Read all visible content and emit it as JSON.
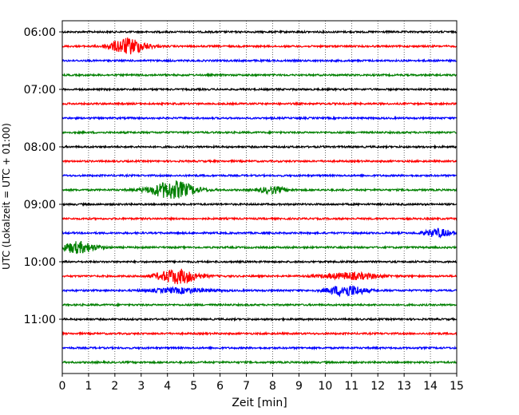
{
  "chart_data": {
    "type": "line",
    "subtype": "helicorder",
    "xlabel": "Zeit  [min]",
    "ylabel": "UTC (Lokalzeit = UTC + 01:00)",
    "xlim": [
      0,
      15
    ],
    "x_ticks": [
      "0",
      "1",
      "2",
      "3",
      "4",
      "5",
      "6",
      "7",
      "8",
      "9",
      "10",
      "11",
      "12",
      "13",
      "14",
      "15"
    ],
    "y_ticks": [
      "06:00",
      "07:00",
      "08:00",
      "09:00",
      "10:00",
      "11:00"
    ],
    "grid": "vertical dotted lines at each minute",
    "row_interval_min": 15,
    "colors": [
      "#000000",
      "#ff0000",
      "#0000ff",
      "#008000"
    ],
    "series": [
      {
        "start": "06:00",
        "color": "#000000",
        "bursts": []
      },
      {
        "start": "06:15",
        "color": "#ff0000",
        "bursts": [
          {
            "center_min": 2.5,
            "width_min": 1.6,
            "amp": 10
          }
        ]
      },
      {
        "start": "06:30",
        "color": "#0000ff",
        "bursts": []
      },
      {
        "start": "06:45",
        "color": "#008000",
        "bursts": []
      },
      {
        "start": "07:00",
        "color": "#000000",
        "bursts": []
      },
      {
        "start": "07:15",
        "color": "#ff0000",
        "bursts": []
      },
      {
        "start": "07:30",
        "color": "#0000ff",
        "bursts": []
      },
      {
        "start": "07:45",
        "color": "#008000",
        "bursts": []
      },
      {
        "start": "08:00",
        "color": "#000000",
        "bursts": []
      },
      {
        "start": "08:15",
        "color": "#ff0000",
        "bursts": []
      },
      {
        "start": "08:30",
        "color": "#0000ff",
        "bursts": []
      },
      {
        "start": "08:45",
        "color": "#008000",
        "bursts": [
          {
            "center_min": 4.2,
            "width_min": 2.0,
            "amp": 11
          },
          {
            "center_min": 8.0,
            "width_min": 1.2,
            "amp": 4
          }
        ]
      },
      {
        "start": "09:00",
        "color": "#000000",
        "bursts": []
      },
      {
        "start": "09:15",
        "color": "#ff0000",
        "bursts": []
      },
      {
        "start": "09:30",
        "color": "#0000ff",
        "bursts": [
          {
            "center_min": 14.3,
            "width_min": 1.2,
            "amp": 5
          }
        ]
      },
      {
        "start": "09:45",
        "color": "#008000",
        "bursts": [
          {
            "center_min": 0.6,
            "width_min": 1.6,
            "amp": 7
          }
        ]
      },
      {
        "start": "10:00",
        "color": "#000000",
        "bursts": []
      },
      {
        "start": "10:15",
        "color": "#ff0000",
        "bursts": [
          {
            "center_min": 4.4,
            "width_min": 1.8,
            "amp": 9
          },
          {
            "center_min": 11.0,
            "width_min": 2.5,
            "amp": 4
          }
        ]
      },
      {
        "start": "10:30",
        "color": "#0000ff",
        "bursts": [
          {
            "center_min": 10.8,
            "width_min": 1.6,
            "amp": 7
          },
          {
            "center_min": 4.5,
            "width_min": 2.5,
            "amp": 3
          }
        ]
      },
      {
        "start": "10:45",
        "color": "#008000",
        "bursts": []
      },
      {
        "start": "11:00",
        "color": "#000000",
        "bursts": []
      },
      {
        "start": "11:15",
        "color": "#ff0000",
        "bursts": []
      },
      {
        "start": "11:30",
        "color": "#0000ff",
        "bursts": []
      },
      {
        "start": "11:45",
        "color": "#008000",
        "bursts": []
      }
    ]
  }
}
